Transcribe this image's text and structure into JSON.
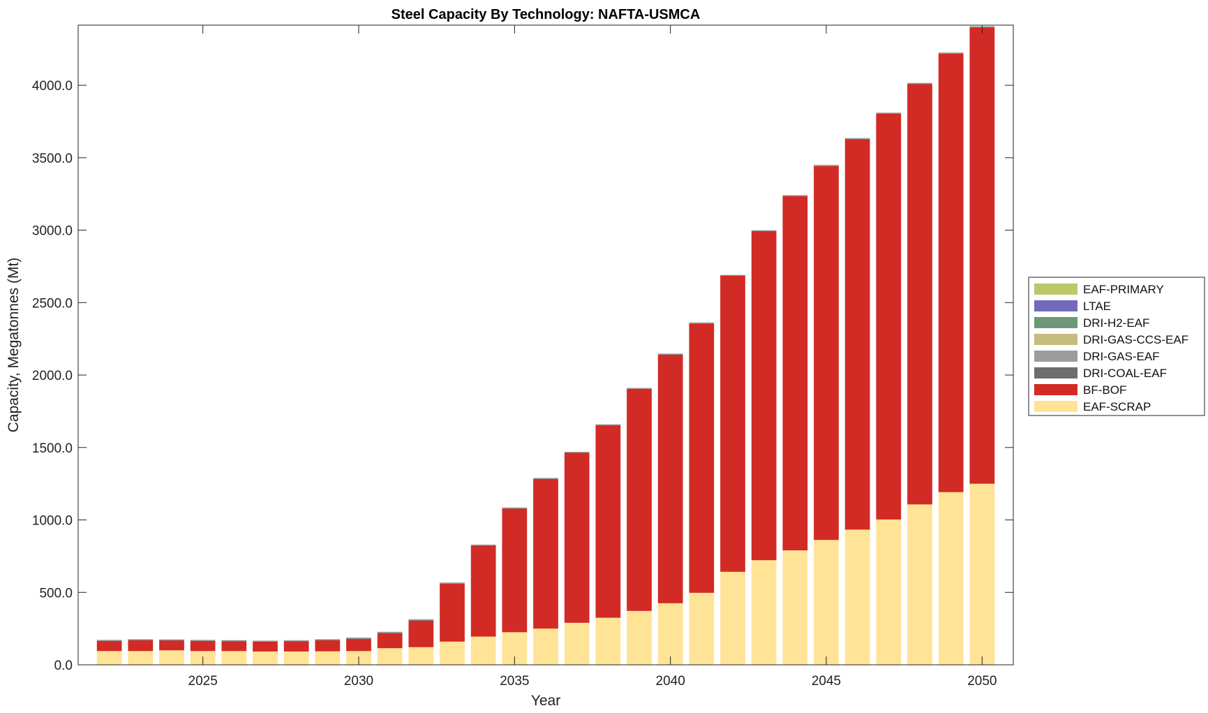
{
  "chart_data": {
    "type": "bar",
    "stacked": true,
    "title": "Steel Capacity By Technology: NAFTA-USMCA",
    "xlabel": "Year",
    "ylabel": "Capacity, Megatonnes (Mt)",
    "ylim": [
      0,
      4415
    ],
    "xlim": [
      2021,
      2051
    ],
    "yticks": [
      0,
      500,
      1000,
      1500,
      2000,
      2500,
      3000,
      3500,
      4000
    ],
    "ytick_labels": [
      "0.0",
      "500.0",
      "1000.0",
      "1500.0",
      "2000.0",
      "2500.0",
      "3000.0",
      "3500.0",
      "4000.0"
    ],
    "xticks": [
      2025,
      2030,
      2035,
      2040,
      2045,
      2050
    ],
    "xtick_labels": [
      "2025",
      "2030",
      "2035",
      "2040",
      "2045",
      "2050"
    ],
    "legend_position": "right",
    "categories": [
      2022,
      2023,
      2024,
      2025,
      2026,
      2027,
      2028,
      2029,
      2030,
      2031,
      2032,
      2033,
      2034,
      2035,
      2036,
      2037,
      2038,
      2039,
      2040,
      2041,
      2042,
      2043,
      2044,
      2045,
      2046,
      2047,
      2048,
      2049,
      2050
    ],
    "series": [
      {
        "name": "EAF-SCRAP",
        "color": "#FFE396",
        "values": [
          95,
          95,
          100,
          95,
          95,
          92,
          92,
          93,
          95,
          115,
          122,
          160,
          195,
          225,
          250,
          290,
          325,
          372,
          425,
          497,
          642,
          722,
          790,
          862,
          933,
          1003,
          1107,
          1192,
          1250
        ]
      },
      {
        "name": "BF-BOF",
        "color": "#D22A24",
        "values": [
          70,
          75,
          68,
          70,
          68,
          68,
          70,
          77,
          83,
          103,
          183,
          400,
          627,
          853,
          1033,
          1173,
          1328,
          1533,
          1715,
          1859,
          2043,
          2271,
          2445,
          2581,
          2695,
          2800,
          2901,
          3026,
          3150
        ]
      },
      {
        "name": "DRI-COAL-EAF",
        "color": "#6E6E6E",
        "values": [
          3,
          3,
          3,
          3,
          3,
          3,
          3,
          3,
          4,
          4,
          4,
          3,
          3,
          3,
          2,
          2,
          2,
          2,
          2,
          2,
          2,
          2,
          2,
          2,
          2,
          2,
          2,
          2,
          2
        ]
      },
      {
        "name": "DRI-GAS-EAF",
        "color": "#9C9C9C",
        "values": [
          4,
          4,
          4,
          4,
          4,
          4,
          5,
          4,
          6,
          6,
          6,
          5,
          5,
          5,
          5,
          5,
          5,
          4,
          5,
          4,
          3,
          3,
          4,
          5,
          5,
          5,
          5,
          5,
          5
        ]
      },
      {
        "name": "DRI-GAS-CCS-EAF",
        "color": "#C6BC7D",
        "values": [
          0,
          0,
          0,
          0,
          0,
          0,
          0,
          0,
          0,
          0,
          0,
          0,
          0,
          0,
          0,
          0,
          0,
          0,
          0,
          0,
          0,
          0,
          0,
          0,
          0,
          0,
          0,
          0,
          0
        ]
      },
      {
        "name": "DRI-H2-EAF",
        "color": "#6E977A",
        "values": [
          0,
          0,
          0,
          0,
          0,
          0,
          0,
          0,
          0,
          0,
          0,
          0,
          0,
          0,
          0,
          0,
          0,
          0,
          1,
          1,
          1,
          1,
          1,
          1,
          1,
          1,
          1,
          1,
          1
        ]
      },
      {
        "name": "LTAE",
        "color": "#7469BD",
        "values": [
          0,
          0,
          0,
          0,
          0,
          0,
          0,
          0,
          0,
          0,
          0,
          0,
          0,
          0,
          0,
          0,
          0,
          0,
          0,
          0,
          0,
          0,
          0,
          0,
          0,
          0,
          0,
          0,
          0
        ]
      },
      {
        "name": "EAF-PRIMARY",
        "color": "#BCC86A",
        "values": [
          0,
          0,
          0,
          0,
          0,
          0,
          0,
          0,
          0,
          0,
          0,
          0,
          0,
          0,
          0,
          0,
          0,
          0,
          0,
          0,
          0,
          0,
          0,
          0,
          0,
          0,
          0,
          0,
          0
        ]
      }
    ],
    "legend_order": [
      "EAF-PRIMARY",
      "LTAE",
      "DRI-H2-EAF",
      "DRI-GAS-CCS-EAF",
      "DRI-GAS-EAF",
      "DRI-COAL-EAF",
      "BF-BOF",
      "EAF-SCRAP"
    ]
  }
}
